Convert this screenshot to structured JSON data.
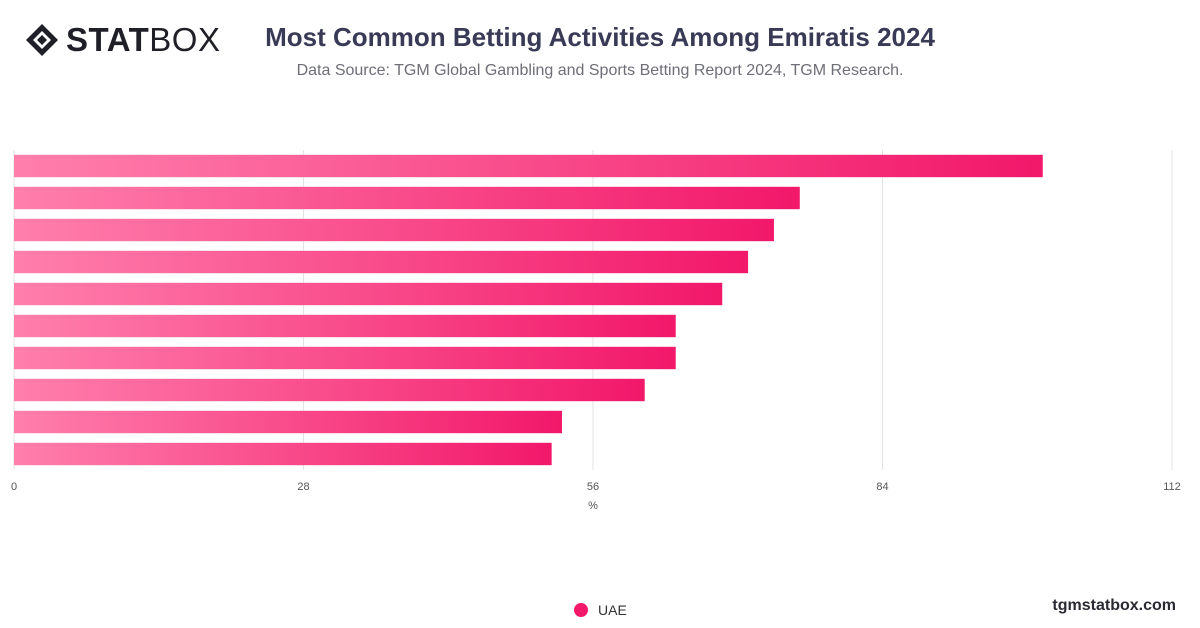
{
  "brand": {
    "logo_bold": "STAT",
    "logo_light": "BOX"
  },
  "header": {
    "title": "Most Common Betting Activities Among Emiratis 2024",
    "subtitle": "Data Source: TGM Global Gambling and Sports Betting Report 2024, TGM Research."
  },
  "footer": {
    "site": "tgmstatbox.com"
  },
  "colors": {
    "bar_start": "#ff7fac",
    "bar_end": "#f2186a",
    "grid": "#e3e3e3",
    "axis_text": "#555555"
  },
  "chart_data": {
    "type": "bar",
    "orientation": "horizontal",
    "categories": [
      "",
      "",
      "",
      "",
      "",
      "",
      "",
      "",
      "",
      ""
    ],
    "series": [
      {
        "name": "UAE",
        "values": [
          99.5,
          76,
          73.5,
          71,
          68.5,
          64,
          64,
          61,
          53,
          52
        ]
      }
    ],
    "xlabel": "%",
    "ylabel": "",
    "xlim": [
      0,
      112
    ],
    "xticks": [
      0,
      28,
      56,
      84,
      112
    ],
    "grid": true,
    "legend": "bottom-center"
  }
}
